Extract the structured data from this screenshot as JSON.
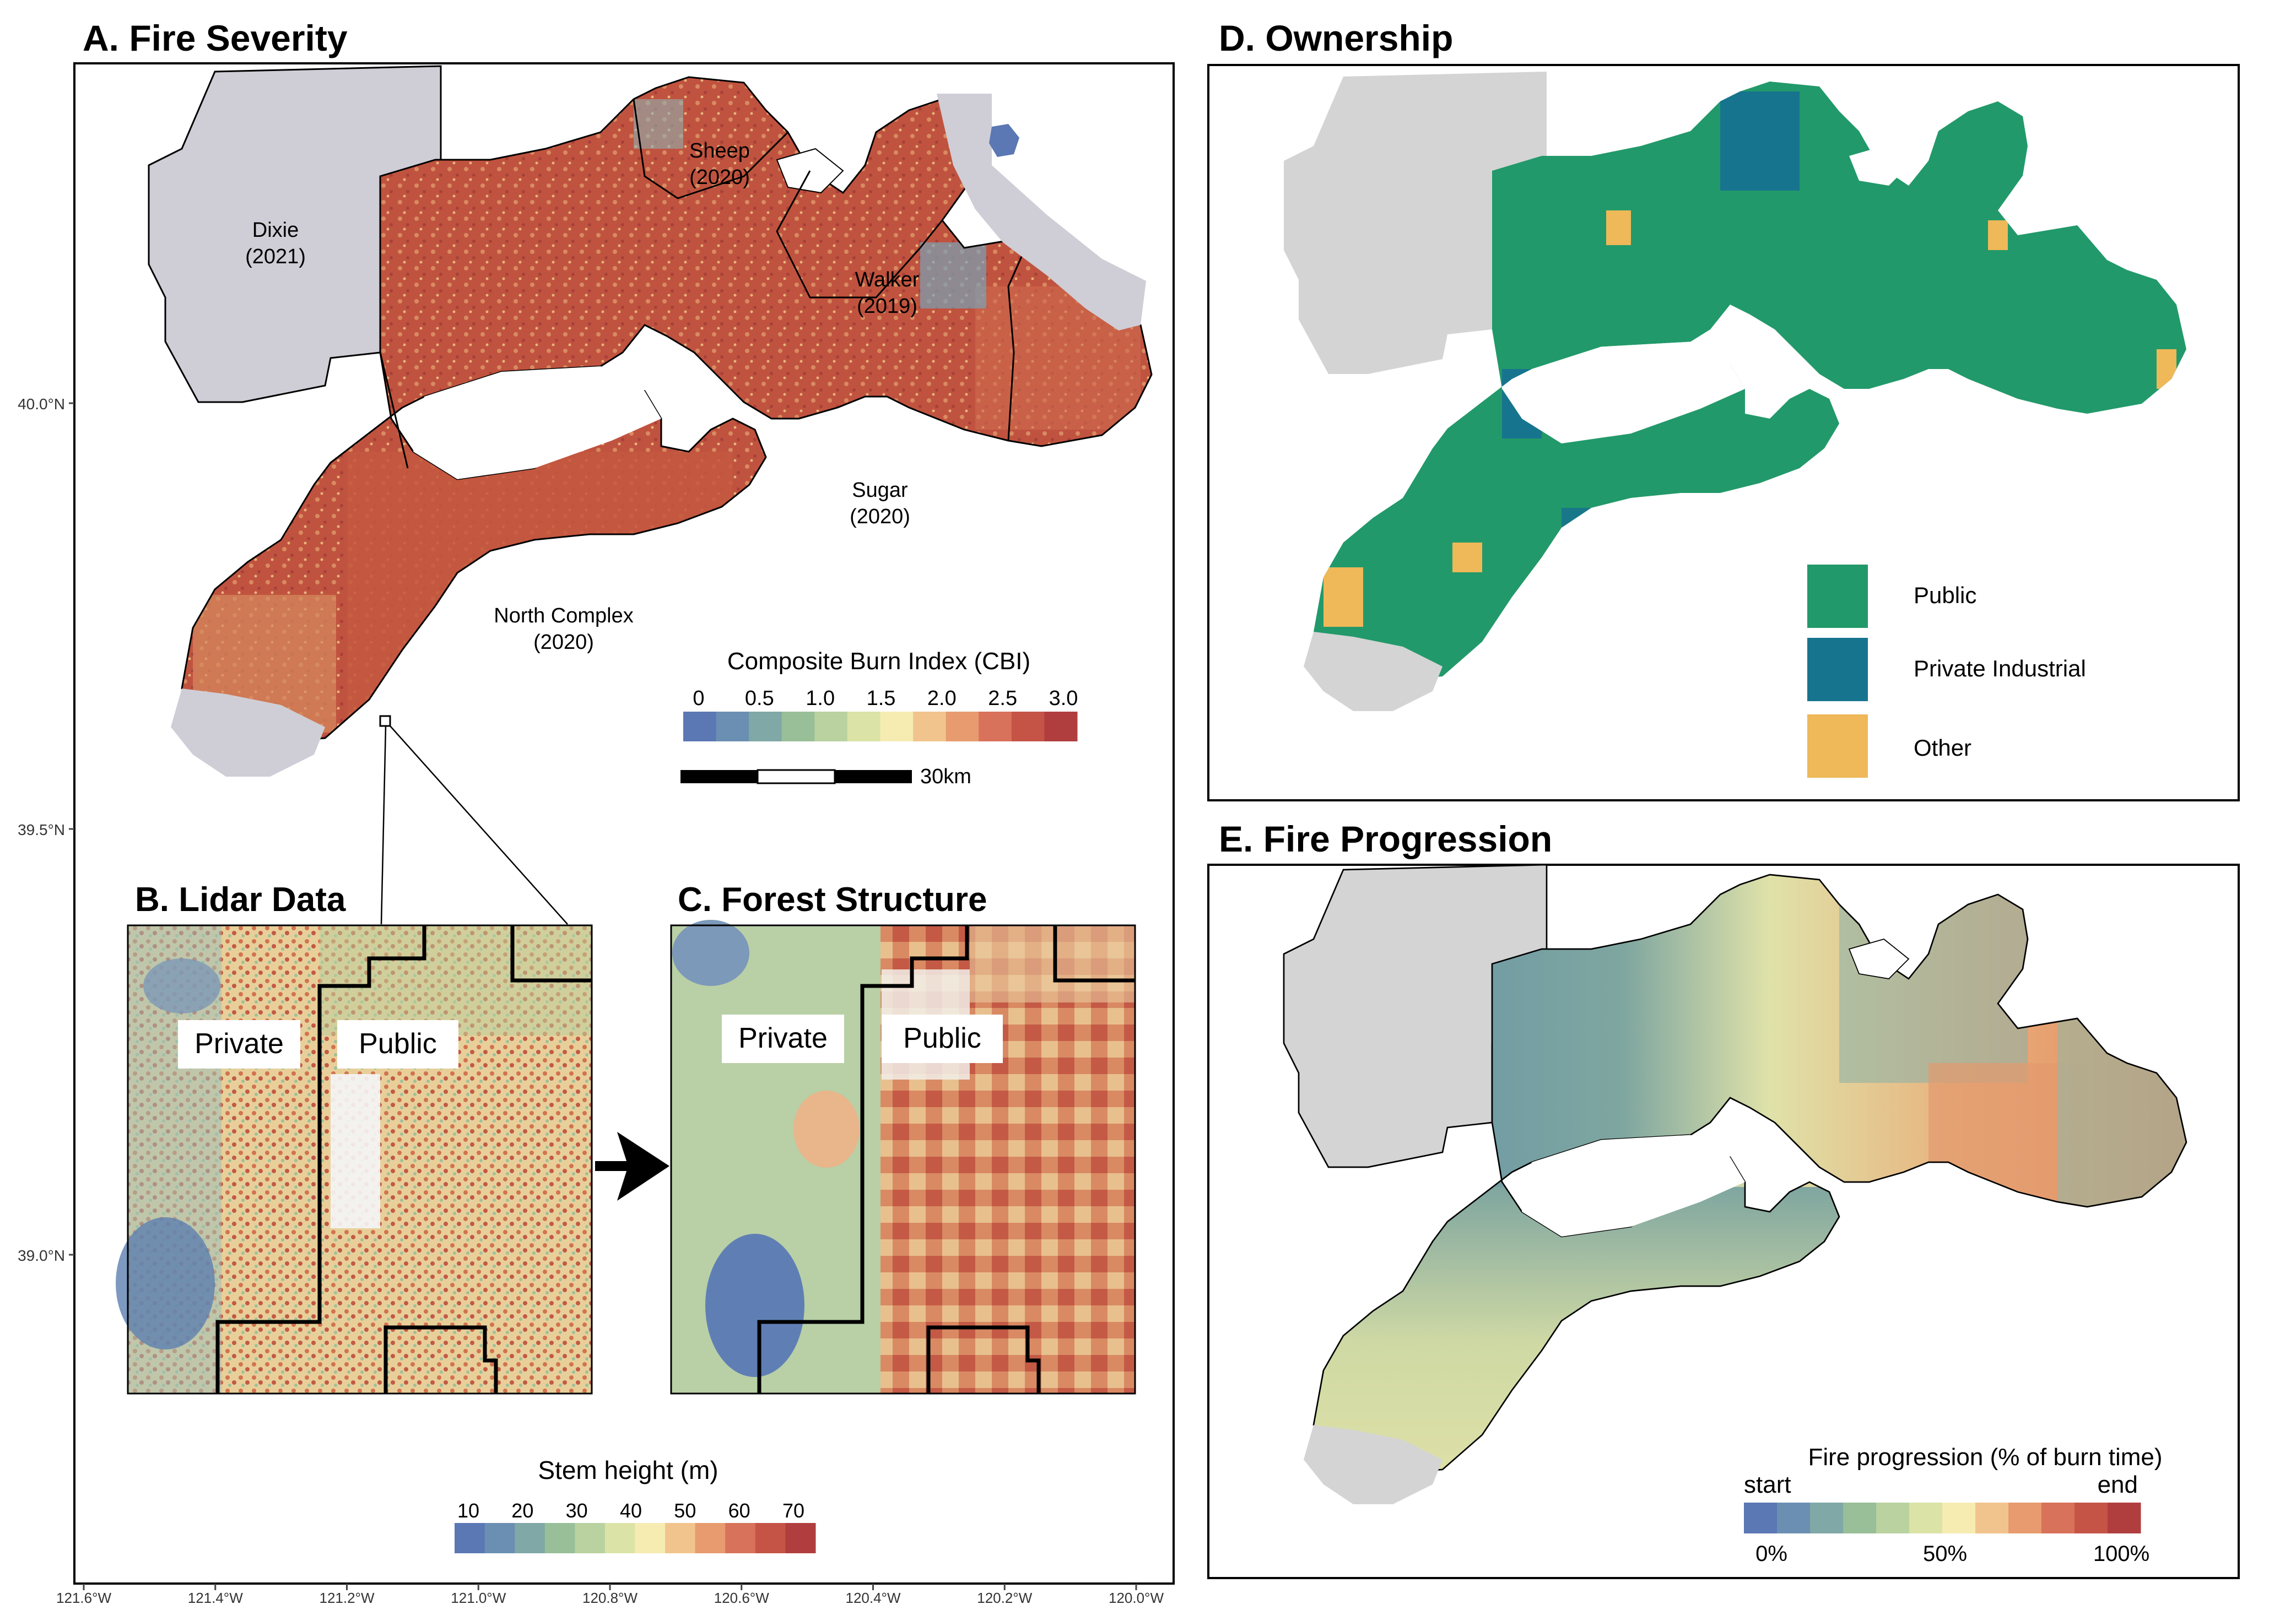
{
  "panels": {
    "a": {
      "title": "A. Fire Severity"
    },
    "b": {
      "title": "B. Lidar Data",
      "label_private": "Private",
      "label_public": "Public"
    },
    "c": {
      "title": "C. Forest Structure",
      "label_private": "Private",
      "label_public": "Public"
    },
    "d": {
      "title": "D. Ownership"
    },
    "e": {
      "title": "E. Fire Progression"
    }
  },
  "fires": [
    {
      "name": "Dixie",
      "year": "(2021)"
    },
    {
      "name": "Sheep",
      "year": "(2020)"
    },
    {
      "name": "Walker",
      "year": "(2019)"
    },
    {
      "name": "Sugar",
      "year": "(2020)"
    },
    {
      "name": "North Complex",
      "year": "(2020)"
    }
  ],
  "axes": {
    "lat_ticks": [
      "40.0°N",
      "39.5°N",
      "39.0°N"
    ],
    "lon_ticks": [
      "121.6°W",
      "121.4°W",
      "121.2°W",
      "121.0°W",
      "120.8°W",
      "120.6°W",
      "120.4°W",
      "120.2°W",
      "120.0°W"
    ]
  },
  "legends": {
    "cbi": {
      "title": "Composite Burn Index (CBI)",
      "ticks": [
        "0",
        "0.5",
        "1.0",
        "1.5",
        "2.0",
        "2.5",
        "3.0"
      ],
      "colors": [
        "#5b77b4",
        "#6a8fb3",
        "#7fa8a6",
        "#98bf98",
        "#b9d2a0",
        "#dce3a6",
        "#f6ecb2",
        "#f2c48d",
        "#e79b6e",
        "#d8725a",
        "#c55447",
        "#b13e3e"
      ]
    },
    "scalebar": {
      "label": "30km"
    },
    "stem": {
      "title": "Stem height (m)",
      "ticks": [
        "10",
        "20",
        "30",
        "40",
        "50",
        "60",
        "70"
      ],
      "colors": [
        "#5b77b4",
        "#6a8fb3",
        "#7fa8a6",
        "#98bf98",
        "#b9d2a0",
        "#dce3a6",
        "#f6ecb2",
        "#f2c48d",
        "#e79b6e",
        "#d8725a",
        "#c55447",
        "#b13e3e"
      ]
    },
    "ownership": {
      "items": [
        {
          "label": "Public",
          "color": "#22996a"
        },
        {
          "label": "Private Industrial",
          "color": "#17748e"
        },
        {
          "label": "Other",
          "color": "#efb858"
        }
      ]
    },
    "progression": {
      "title": "Fire progression (% of burn time)",
      "start": "start",
      "end": "end",
      "ticks": [
        "0%",
        "50%",
        "100%"
      ],
      "colors": [
        "#5b77b4",
        "#6a8fb3",
        "#7fa8a6",
        "#98bf98",
        "#b9d2a0",
        "#dce3a6",
        "#f6ecb2",
        "#f2c48d",
        "#e79b6e",
        "#d8725a",
        "#c55447",
        "#b13e3e"
      ]
    }
  },
  "colors": {
    "background_polygons": "#cfced6",
    "panel_border": "#000000",
    "public": "#22996a",
    "private_industrial": "#17748e",
    "other": "#efb858",
    "fire_severity_high": "#c0533f",
    "progression_early": "#5f8faa",
    "progression_mid": "#dfe2a9",
    "progression_late": "#e29a6e"
  }
}
